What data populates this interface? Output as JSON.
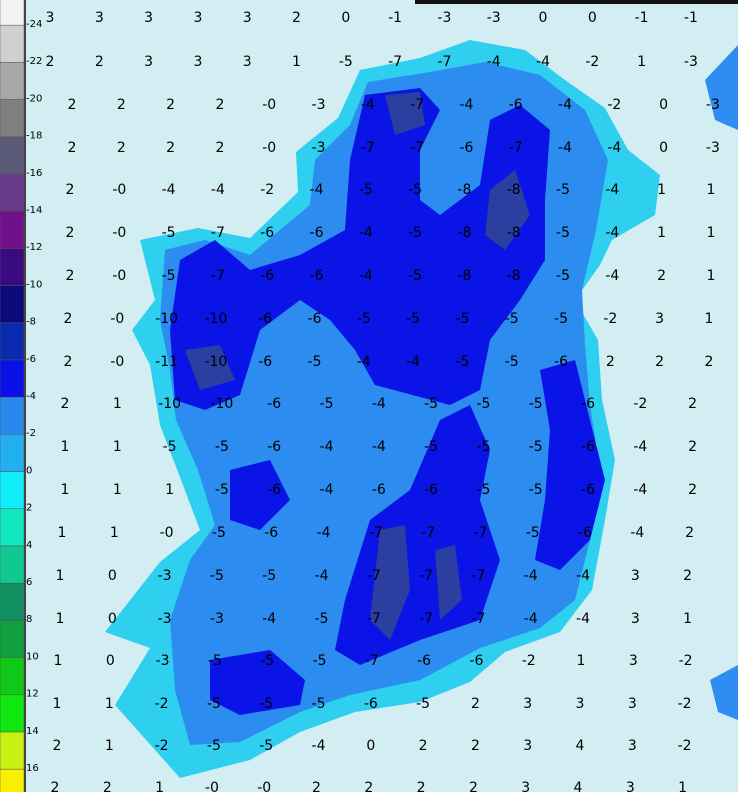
{
  "scale": {
    "labels": [
      "-24",
      "-22",
      "-20",
      "-18",
      "-16",
      "-14",
      "-12",
      "-10",
      "-8",
      "-6",
      "-4",
      "-2",
      "0",
      "2",
      "4",
      "6",
      "8",
      "10",
      "12",
      "14",
      "16"
    ]
  },
  "grid": {
    "rows": [
      [
        "3",
        "3",
        "3",
        "3",
        "3",
        "2",
        "0",
        "-1",
        "-3",
        "-3",
        "0",
        "0",
        "-1",
        "-1"
      ],
      [
        "2",
        "2",
        "3",
        "3",
        "3",
        "1",
        "-5",
        "-7",
        "-7",
        "-4",
        "-4",
        "-2",
        "1",
        "-3"
      ],
      [
        "2",
        "2",
        "2",
        "2",
        "-0",
        "-3",
        "-4",
        "-7",
        "-4",
        "-6",
        "-4",
        "-2",
        "0",
        "-3"
      ],
      [
        "2",
        "2",
        "2",
        "2",
        "-0",
        "-3",
        "-7",
        "-7",
        "-6",
        "-7",
        "-4",
        "-4",
        "0",
        "-3"
      ],
      [
        "2",
        "-0",
        "-4",
        "-4",
        "-2",
        "-4",
        "-5",
        "-5",
        "-8",
        "-8",
        "-5",
        "-4",
        "1",
        "1"
      ],
      [
        "2",
        "-0",
        "-5",
        "-7",
        "-6",
        "-6",
        "-4",
        "-5",
        "-8",
        "-8",
        "-5",
        "-4",
        "1",
        "1"
      ],
      [
        "2",
        "-0",
        "-5",
        "-7",
        "-6",
        "-6",
        "-4",
        "-5",
        "-8",
        "-8",
        "-5",
        "-4",
        "2",
        "1"
      ],
      [
        "2",
        "-0",
        "-10",
        "-10",
        "-6",
        "-6",
        "-5",
        "-5",
        "-5",
        "-5",
        "-5",
        "-2",
        "3",
        "1"
      ],
      [
        "2",
        "-0",
        "-11",
        "-10",
        "-6",
        "-5",
        "-4",
        "-4",
        "-5",
        "-5",
        "-6",
        "2",
        "2",
        "2"
      ],
      [
        "2",
        "1",
        "-10",
        "-10",
        "-6",
        "-5",
        "-4",
        "-5",
        "-5",
        "-5",
        "-6",
        "-2",
        "2"
      ],
      [
        "1",
        "1",
        "-5",
        "-5",
        "-6",
        "-4",
        "-4",
        "-5",
        "-5",
        "-5",
        "-6",
        "-4",
        "2"
      ],
      [
        "1",
        "1",
        "1",
        "-5",
        "-6",
        "-4",
        "-6",
        "-6",
        "-5",
        "-5",
        "-6",
        "-4",
        "2"
      ],
      [
        "1",
        "1",
        "-0",
        "-5",
        "-6",
        "-4",
        "-7",
        "-7",
        "-7",
        "-5",
        "-6",
        "-4",
        "2"
      ],
      [
        "1",
        "0",
        "-3",
        "-5",
        "-5",
        "-4",
        "-7",
        "-7",
        "-7",
        "-4",
        "-4",
        "3",
        "2"
      ],
      [
        "1",
        "0",
        "-3",
        "-3",
        "-4",
        "-5",
        "-7",
        "-7",
        "-7",
        "-4",
        "-4",
        "3",
        "1"
      ],
      [
        "1",
        "0",
        "-3",
        "-5",
        "-5",
        "-5",
        "-7",
        "-6",
        "-6",
        "-2",
        "1",
        "3",
        "-2"
      ],
      [
        "1",
        "1",
        "-2",
        "-5",
        "-5",
        "-5",
        "-6",
        "-5",
        "2",
        "3",
        "3",
        "3",
        "-2"
      ],
      [
        "2",
        "1",
        "-2",
        "-5",
        "-5",
        "-4",
        "0",
        "2",
        "2",
        "3",
        "4",
        "3",
        "-2"
      ],
      [
        "2",
        "2",
        "1",
        "-0",
        "-0",
        "2",
        "2",
        "2",
        "2",
        "3",
        "4",
        "3",
        "1"
      ]
    ]
  }
}
